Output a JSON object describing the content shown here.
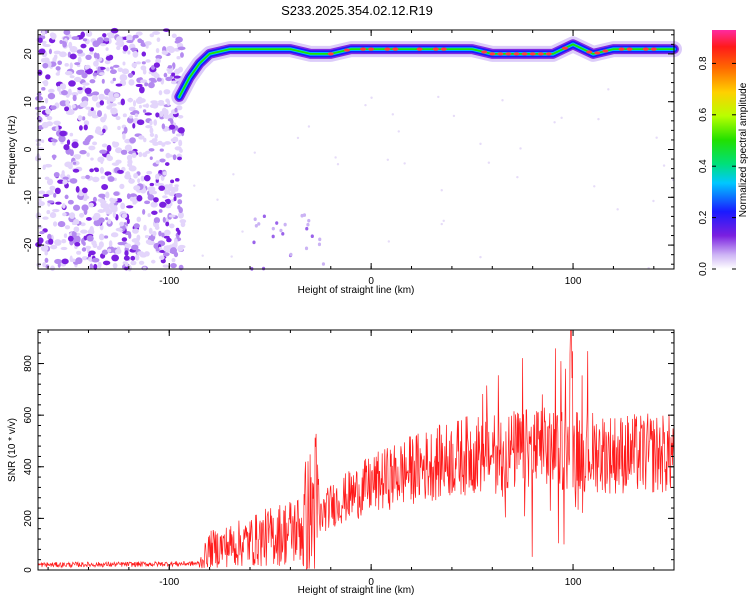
{
  "title": "S233.2025.354.02.12.R19",
  "colors": {
    "snr_line": "#ff1a1a",
    "track": "#ff3d3d",
    "scatter": "#7a1fe0",
    "axis": "#000000"
  },
  "chart_data": [
    {
      "type": "heatmap",
      "xlabel": "Height of straight line (km)",
      "ylabel": "Frequency (Hz)",
      "xlim": [
        -165,
        150
      ],
      "ylim": [
        -25,
        25
      ],
      "xticks": [
        -100,
        0,
        100
      ],
      "xtick_labels": [
        "-100",
        "0",
        "100"
      ],
      "yticks": [
        -20,
        -10,
        0,
        10,
        20
      ],
      "ytick_labels": [
        "-20",
        "-10",
        "0",
        "10",
        "20"
      ],
      "colorbar": {
        "label": "Normalized spectral amplitude",
        "range": [
          0,
          0.93
        ],
        "ticks": [
          0.0,
          0.2,
          0.4,
          0.6,
          0.8
        ],
        "tick_labels": [
          "0.0",
          "0.2",
          "0.4",
          "0.6",
          "0.8"
        ]
      },
      "track": {
        "x": [
          -95,
          -90,
          -85,
          -80,
          -70,
          -60,
          -50,
          -40,
          -30,
          -20,
          -10,
          0,
          10,
          20,
          30,
          40,
          50,
          60,
          70,
          80,
          90,
          100,
          110,
          120,
          130,
          140,
          150
        ],
        "y": [
          11,
          15,
          18,
          20,
          21,
          21,
          21,
          21,
          20,
          20,
          21,
          21,
          21,
          21,
          21,
          21,
          21,
          20,
          20,
          20,
          20,
          22,
          20,
          21,
          21,
          21,
          21
        ]
      },
      "noise_region_x": [
        -165,
        -93
      ]
    },
    {
      "type": "line",
      "xlabel": "Height of straight line (km)",
      "ylabel": "SNR (10 * v/v)",
      "xlim": [
        -165,
        150
      ],
      "ylim": [
        0,
        930
      ],
      "xticks": [
        -100,
        0,
        100
      ],
      "xtick_labels": [
        "-100",
        "0",
        "100"
      ],
      "yticks": [
        0,
        200,
        400,
        600,
        800
      ],
      "ytick_labels": [
        "0",
        "200",
        "400",
        "600",
        "800"
      ],
      "envelope": {
        "x": [
          -165,
          -120,
          -85,
          -80,
          -60,
          -45,
          -35,
          -30,
          -28,
          -25,
          -20,
          -10,
          0,
          10,
          20,
          30,
          40,
          50,
          60,
          70,
          80,
          90,
          100,
          110,
          120,
          130,
          140,
          150
        ],
        "y": [
          20,
          22,
          25,
          80,
          110,
          140,
          160,
          200,
          240,
          210,
          250,
          290,
          330,
          360,
          390,
          410,
          430,
          450,
          450,
          460,
          470,
          470,
          470,
          460,
          450,
          450,
          450,
          450
        ]
      }
    }
  ]
}
